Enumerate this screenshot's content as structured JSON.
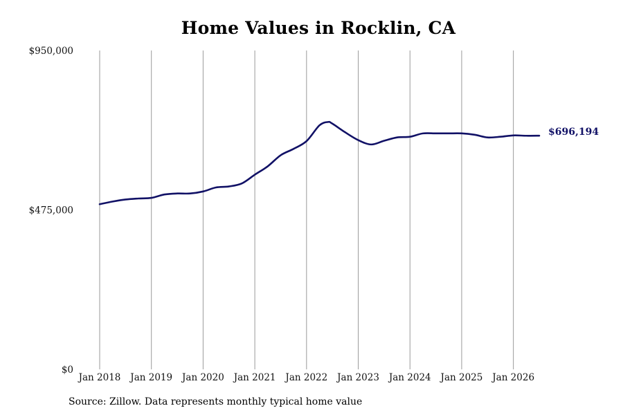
{
  "chart_data": {
    "type": "line",
    "title": "Home Values in Rocklin, CA",
    "source_note": "Source: Zillow. Data represents monthly typical home value",
    "y_ticks": [
      {
        "value": 0,
        "label": "$0"
      },
      {
        "value": 475000,
        "label": "$475,000"
      },
      {
        "value": 950000,
        "label": "$950,000"
      }
    ],
    "x_ticks": [
      "Jan 2018",
      "Jan 2019",
      "Jan 2020",
      "Jan 2021",
      "Jan 2022",
      "Jan 2023",
      "Jan 2024",
      "Jan 2025",
      "Jan 2026"
    ],
    "ylim": [
      0,
      950000
    ],
    "xlim": [
      "2018-01",
      "2026-07"
    ],
    "grid": {
      "vertical": true,
      "horizontal": false
    },
    "line_color": "#111166",
    "end_label": "$696,194",
    "series": [
      {
        "points": [
          {
            "x": "2018-01",
            "y": 492000
          },
          {
            "x": "2018-04",
            "y": 500000
          },
          {
            "x": "2018-07",
            "y": 506000
          },
          {
            "x": "2018-10",
            "y": 509000
          },
          {
            "x": "2019-01",
            "y": 511000
          },
          {
            "x": "2019-04",
            "y": 521000
          },
          {
            "x": "2019-07",
            "y": 524000
          },
          {
            "x": "2019-10",
            "y": 524000
          },
          {
            "x": "2020-01",
            "y": 530000
          },
          {
            "x": "2020-04",
            "y": 542000
          },
          {
            "x": "2020-07",
            "y": 545000
          },
          {
            "x": "2020-10",
            "y": 554000
          },
          {
            "x": "2021-01",
            "y": 580000
          },
          {
            "x": "2021-04",
            "y": 605000
          },
          {
            "x": "2021-07",
            "y": 638000
          },
          {
            "x": "2021-10",
            "y": 657000
          },
          {
            "x": "2022-01",
            "y": 680000
          },
          {
            "x": "2022-04",
            "y": 727000
          },
          {
            "x": "2022-06",
            "y": 737000
          },
          {
            "x": "2022-07",
            "y": 732000
          },
          {
            "x": "2022-10",
            "y": 706000
          },
          {
            "x": "2023-01",
            "y": 683000
          },
          {
            "x": "2023-04",
            "y": 670000
          },
          {
            "x": "2023-07",
            "y": 681000
          },
          {
            "x": "2023-10",
            "y": 691000
          },
          {
            "x": "2024-01",
            "y": 693000
          },
          {
            "x": "2024-04",
            "y": 703000
          },
          {
            "x": "2024-07",
            "y": 703000
          },
          {
            "x": "2024-10",
            "y": 703000
          },
          {
            "x": "2025-01",
            "y": 703000
          },
          {
            "x": "2025-04",
            "y": 699000
          },
          {
            "x": "2025-07",
            "y": 691000
          },
          {
            "x": "2025-10",
            "y": 693000
          },
          {
            "x": "2026-01",
            "y": 697000
          },
          {
            "x": "2026-04",
            "y": 696000
          },
          {
            "x": "2026-07",
            "y": 696194
          }
        ]
      }
    ]
  }
}
